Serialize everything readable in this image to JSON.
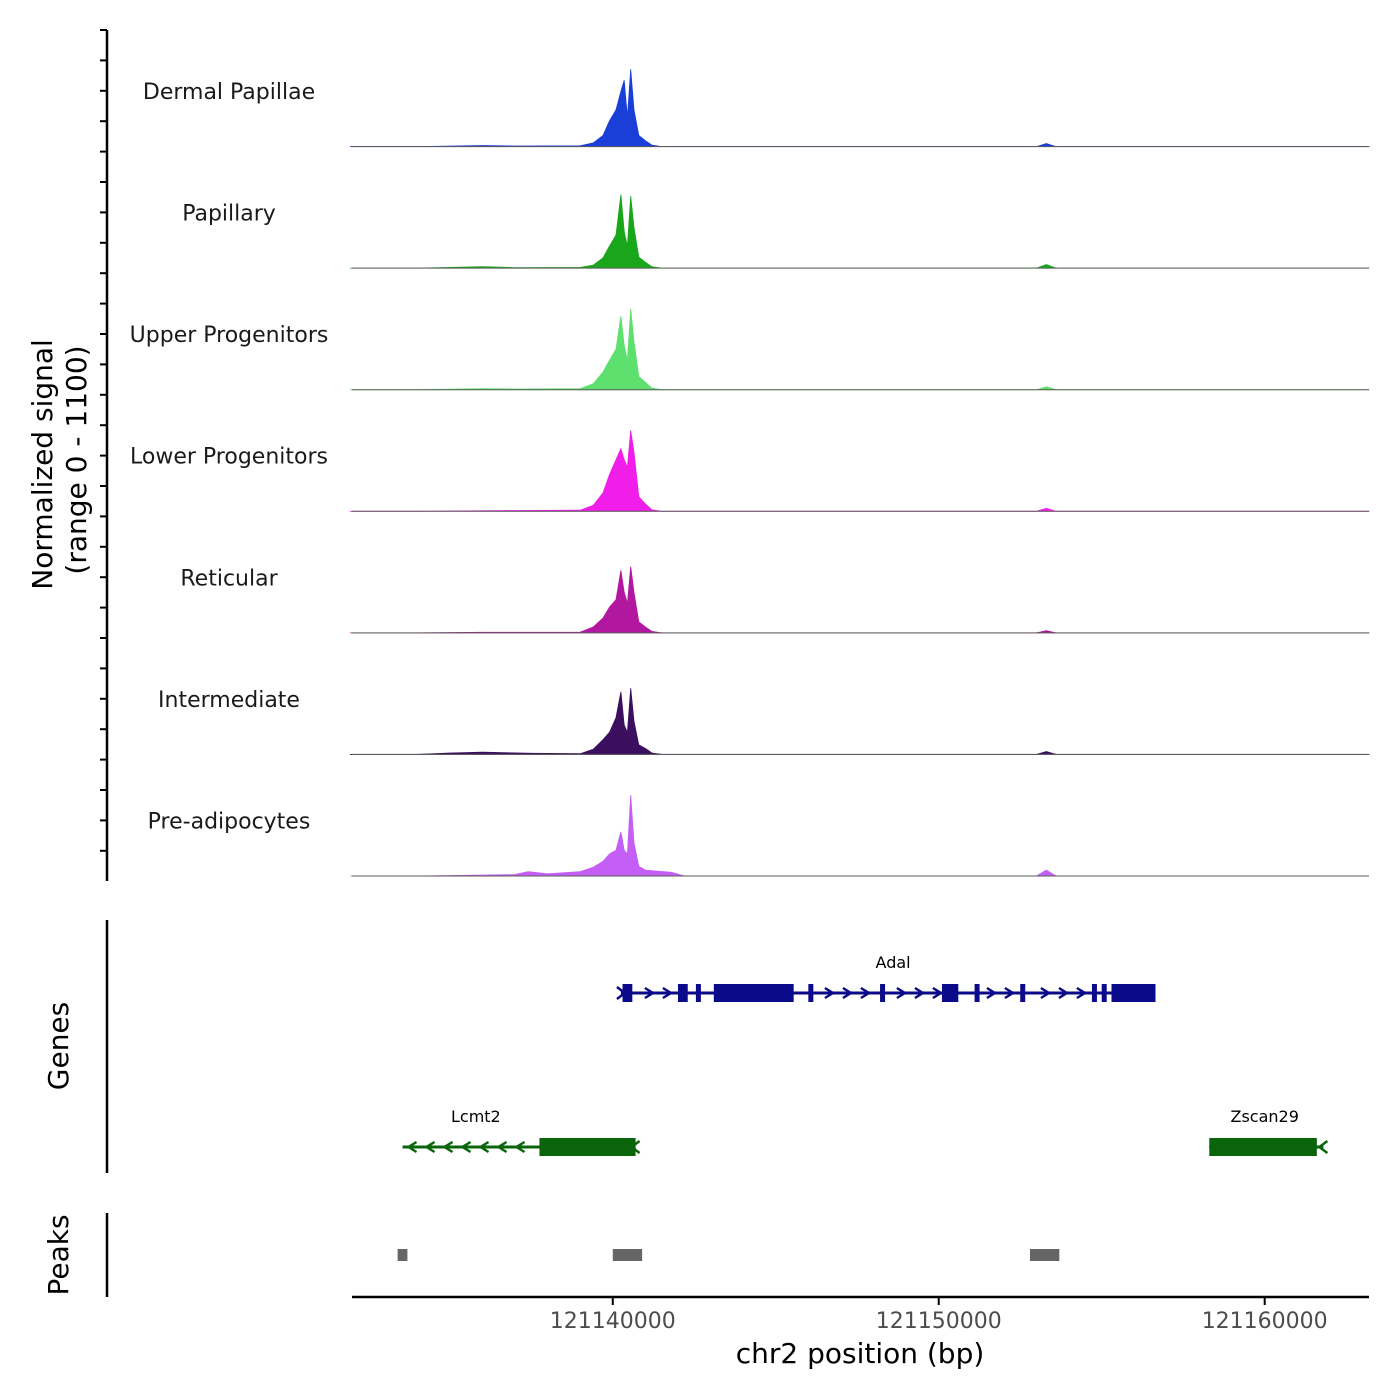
{
  "chart_data": {
    "type": "area",
    "title": "",
    "xlabel": "chr2 position (bp)",
    "ylabel_line1": "Normalized signal",
    "ylabel_line2": "(range 0 - 1100)",
    "ylim": [
      0,
      1100
    ],
    "xlim": [
      121132000,
      121163200
    ],
    "x_ticks": [
      121140000,
      121150000,
      121160000
    ],
    "x_tick_labels": [
      "121140000",
      "121150000",
      "121160000"
    ],
    "tracks": [
      {
        "name": "Dermal Papillae",
        "color": "#1a3fd9",
        "values": [
          [
            121131950,
            0
          ],
          [
            121134000,
            0
          ],
          [
            121136000,
            15
          ],
          [
            121137000,
            8
          ],
          [
            121139000,
            10
          ],
          [
            121139400,
            50
          ],
          [
            121139700,
            150
          ],
          [
            121139900,
            350
          ],
          [
            121140100,
            500
          ],
          [
            121140250,
            750
          ],
          [
            121140350,
            900
          ],
          [
            121140450,
            400
          ],
          [
            121140550,
            1050
          ],
          [
            121140650,
            500
          ],
          [
            121140800,
            150
          ],
          [
            121141000,
            80
          ],
          [
            121141200,
            20
          ],
          [
            121141500,
            0
          ],
          [
            121150000,
            0
          ],
          [
            121153000,
            0
          ],
          [
            121153300,
            40
          ],
          [
            121153600,
            0
          ],
          [
            121163200,
            0
          ]
        ]
      },
      {
        "name": "Papillary",
        "color": "#1aa61a",
        "values": [
          [
            121131950,
            0
          ],
          [
            121134000,
            0
          ],
          [
            121136000,
            20
          ],
          [
            121137000,
            8
          ],
          [
            121139000,
            10
          ],
          [
            121139400,
            40
          ],
          [
            121139700,
            140
          ],
          [
            121139900,
            300
          ],
          [
            121140100,
            450
          ],
          [
            121140250,
            1000
          ],
          [
            121140350,
            500
          ],
          [
            121140450,
            300
          ],
          [
            121140550,
            980
          ],
          [
            121140650,
            550
          ],
          [
            121140800,
            150
          ],
          [
            121141000,
            80
          ],
          [
            121141200,
            20
          ],
          [
            121141500,
            0
          ],
          [
            121153000,
            0
          ],
          [
            121153300,
            50
          ],
          [
            121153600,
            0
          ],
          [
            121163200,
            0
          ]
        ]
      },
      {
        "name": "Upper Progenitors",
        "color": "#5de06d",
        "values": [
          [
            121131950,
            0
          ],
          [
            121134000,
            0
          ],
          [
            121136000,
            15
          ],
          [
            121137000,
            10
          ],
          [
            121139000,
            15
          ],
          [
            121139400,
            80
          ],
          [
            121139700,
            240
          ],
          [
            121139900,
            400
          ],
          [
            121140100,
            550
          ],
          [
            121140250,
            1000
          ],
          [
            121140350,
            600
          ],
          [
            121140450,
            400
          ],
          [
            121140550,
            1100
          ],
          [
            121140650,
            650
          ],
          [
            121140800,
            180
          ],
          [
            121141000,
            100
          ],
          [
            121141200,
            20
          ],
          [
            121141500,
            0
          ],
          [
            121153000,
            0
          ],
          [
            121153300,
            40
          ],
          [
            121153600,
            0
          ],
          [
            121163200,
            0
          ]
        ]
      },
      {
        "name": "Lower Progenitors",
        "color": "#f01ee8",
        "values": [
          [
            121131950,
            0
          ],
          [
            121134000,
            0
          ],
          [
            121137000,
            10
          ],
          [
            121139000,
            15
          ],
          [
            121139400,
            80
          ],
          [
            121139700,
            250
          ],
          [
            121139900,
            500
          ],
          [
            121140100,
            700
          ],
          [
            121140250,
            850
          ],
          [
            121140350,
            700
          ],
          [
            121140450,
            600
          ],
          [
            121140550,
            1100
          ],
          [
            121140650,
            800
          ],
          [
            121140800,
            200
          ],
          [
            121141000,
            100
          ],
          [
            121141200,
            20
          ],
          [
            121141500,
            0
          ],
          [
            121153000,
            0
          ],
          [
            121153300,
            40
          ],
          [
            121153600,
            0
          ],
          [
            121163200,
            0
          ]
        ]
      },
      {
        "name": "Reticular",
        "color": "#b2189f",
        "values": [
          [
            121131950,
            0
          ],
          [
            121134000,
            0
          ],
          [
            121136000,
            8
          ],
          [
            121139000,
            10
          ],
          [
            121139400,
            80
          ],
          [
            121139700,
            200
          ],
          [
            121139900,
            350
          ],
          [
            121140100,
            450
          ],
          [
            121140250,
            850
          ],
          [
            121140350,
            550
          ],
          [
            121140450,
            400
          ],
          [
            121140550,
            900
          ],
          [
            121140650,
            550
          ],
          [
            121140800,
            150
          ],
          [
            121141000,
            80
          ],
          [
            121141200,
            20
          ],
          [
            121141500,
            0
          ],
          [
            121153000,
            0
          ],
          [
            121153300,
            30
          ],
          [
            121153600,
            0
          ],
          [
            121163200,
            0
          ]
        ]
      },
      {
        "name": "Intermediate",
        "color": "#3b0f5e",
        "values": [
          [
            121131950,
            0
          ],
          [
            121134000,
            0
          ],
          [
            121135000,
            20
          ],
          [
            121136000,
            30
          ],
          [
            121137500,
            15
          ],
          [
            121139000,
            10
          ],
          [
            121139400,
            70
          ],
          [
            121139700,
            200
          ],
          [
            121139900,
            300
          ],
          [
            121140100,
            500
          ],
          [
            121140250,
            850
          ],
          [
            121140350,
            400
          ],
          [
            121140450,
            300
          ],
          [
            121140550,
            900
          ],
          [
            121140650,
            450
          ],
          [
            121140800,
            130
          ],
          [
            121141000,
            80
          ],
          [
            121141200,
            20
          ],
          [
            121141500,
            0
          ],
          [
            121153000,
            0
          ],
          [
            121153300,
            40
          ],
          [
            121153600,
            0
          ],
          [
            121163200,
            0
          ]
        ]
      },
      {
        "name": "Pre-adipocytes",
        "color": "#c45ef5",
        "values": [
          [
            121131950,
            0
          ],
          [
            121134000,
            0
          ],
          [
            121137000,
            20
          ],
          [
            121137400,
            60
          ],
          [
            121138000,
            30
          ],
          [
            121139000,
            60
          ],
          [
            121139400,
            120
          ],
          [
            121139700,
            200
          ],
          [
            121139900,
            300
          ],
          [
            121140100,
            350
          ],
          [
            121140250,
            600
          ],
          [
            121140350,
            350
          ],
          [
            121140450,
            300
          ],
          [
            121140550,
            1100
          ],
          [
            121140650,
            450
          ],
          [
            121140800,
            130
          ],
          [
            121141000,
            80
          ],
          [
            121141800,
            50
          ],
          [
            121142200,
            0
          ],
          [
            121153000,
            0
          ],
          [
            121153300,
            80
          ],
          [
            121153600,
            0
          ],
          [
            121163200,
            0
          ]
        ]
      }
    ],
    "genes": [
      {
        "name": "Adal",
        "color": "#0a0a8a",
        "strand": "+",
        "start": 121140250,
        "end": 121156650,
        "label_x": 121148600,
        "exons": [
          [
            121140300,
            121140600
          ],
          [
            121142000,
            121142300
          ],
          [
            121142550,
            121142650
          ],
          [
            121143100,
            121145550
          ],
          [
            121146000,
            121146100
          ],
          [
            121148200,
            121148300
          ],
          [
            121150100,
            121150600
          ],
          [
            121151100,
            121151200
          ],
          [
            121152500,
            121152600
          ],
          [
            121154700,
            121154800
          ],
          [
            121155000,
            121155100
          ],
          [
            121155300,
            121156650
          ]
        ]
      },
      {
        "name": "Lcmt2",
        "color": "#0a640a",
        "strand": "-",
        "start": 121133550,
        "end": 121140700,
        "label_x": 121135800,
        "exons": [
          [
            121137750,
            121140700
          ]
        ]
      },
      {
        "name": "Zscan29",
        "color": "#0a640a",
        "strand": "-",
        "start": 121158300,
        "end": 121161800,
        "label_x": 121160000,
        "exons": [
          [
            121158300,
            121161600
          ]
        ]
      }
    ],
    "peaks": [
      [
        121133400,
        121133700
      ],
      [
        121140000,
        121140900
      ],
      [
        121152800,
        121153700
      ]
    ],
    "panel_labels": {
      "genes": "Genes",
      "peaks": "Peaks"
    }
  }
}
